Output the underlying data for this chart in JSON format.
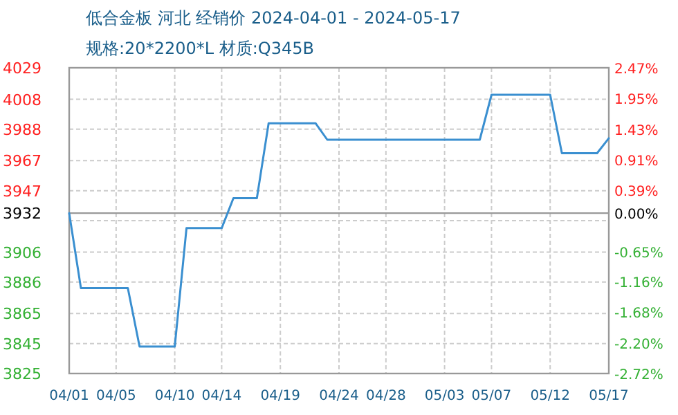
{
  "chart_data": {
    "type": "line",
    "title": "低合金板 河北 经销价 2024-04-01 - 2024-05-17",
    "subtitle": "规格:20*2200*L 材质:Q345B",
    "x": [
      "2024-04-01",
      "2024-04-02",
      "2024-04-06",
      "2024-04-07",
      "2024-04-10",
      "2024-04-11",
      "2024-04-14",
      "2024-04-15",
      "2024-04-17",
      "2024-04-18",
      "2024-04-22",
      "2024-04-23",
      "2024-05-06",
      "2024-05-07",
      "2024-05-12",
      "2024-05-13",
      "2024-05-16",
      "2024-05-17"
    ],
    "series": [
      {
        "color": "#3a8fd0",
        "values": [
          3932,
          3882,
          3882,
          3843,
          3843,
          3922,
          3922,
          3942,
          3942,
          3992,
          3992,
          3981,
          3981,
          4011,
          4011,
          3972,
          3972,
          3982
        ]
      }
    ],
    "xlim": [
      "2024-04-01",
      "2024-05-17"
    ],
    "xticks": [
      {
        "value": "2024-04-01",
        "label": "04/01"
      },
      {
        "value": "2024-04-05",
        "label": "04/05"
      },
      {
        "value": "2024-04-10",
        "label": "04/10"
      },
      {
        "value": "2024-04-14",
        "label": "04/14"
      },
      {
        "value": "2024-04-19",
        "label": "04/19"
      },
      {
        "value": "2024-04-24",
        "label": "04/24"
      },
      {
        "value": "2024-04-28",
        "label": "04/28"
      },
      {
        "value": "2024-05-03",
        "label": "05/03"
      },
      {
        "value": "2024-05-07",
        "label": "05/07"
      },
      {
        "value": "2024-05-12",
        "label": "05/12"
      },
      {
        "value": "2024-05-17",
        "label": "05/17"
      }
    ],
    "ylim": [
      3825,
      4029
    ],
    "yticks": [
      3825,
      3845,
      3865,
      3886,
      3906,
      {
        "value": 3927,
        "label": null
      },
      3947,
      3967,
      3988,
      4008,
      4029
    ],
    "y2lim": [
      -2.72,
      2.47
    ],
    "y2ticks": [
      {
        "value": -2.72,
        "label": "-2.72%"
      },
      {
        "value": -2.2,
        "label": "-2.20%"
      },
      {
        "value": -1.68,
        "label": "-1.68%"
      },
      {
        "value": -1.16,
        "label": "-1.16%"
      },
      {
        "value": -0.65,
        "label": "-0.65%"
      },
      {
        "value": 0,
        "label": "0.00%"
      },
      {
        "value": 0.39,
        "label": "0.39%"
      },
      {
        "value": 0.91,
        "label": "0.91%"
      },
      {
        "value": 1.43,
        "label": "1.43%"
      },
      {
        "value": 1.95,
        "label": "1.95%"
      },
      {
        "value": 2.47,
        "label": "2.47%"
      }
    ],
    "ref_lines": [
      {
        "axis": "y",
        "value": 3932,
        "label": "3932",
        "color": "#999999"
      }
    ],
    "grid": true
  }
}
